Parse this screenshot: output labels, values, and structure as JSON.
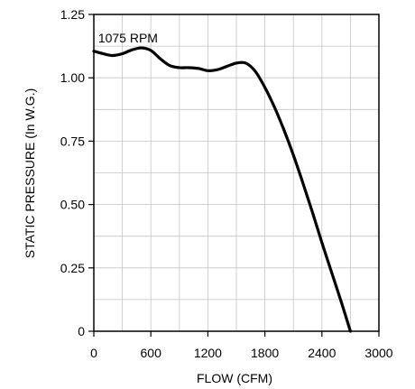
{
  "chart_data": {
    "type": "line",
    "xlabel": "FLOW (CFM)",
    "ylabel": "STATIC PRESSURE (In W.G.)",
    "xlim": [
      0,
      3000
    ],
    "ylim": [
      0,
      1.25
    ],
    "xticks": [
      0,
      600,
      1200,
      1800,
      2400,
      3000
    ],
    "xtick_labels": [
      "0",
      "600",
      "1200",
      "1800",
      "2400",
      "3000"
    ],
    "yticks": [
      0,
      0.25,
      0.5,
      0.75,
      1.0,
      1.25
    ],
    "ytick_labels": [
      "0",
      "0.25",
      "0.50",
      "0.75",
      "1.00",
      "1.25"
    ],
    "x_minor_step": 300,
    "y_minor_step": 0.125,
    "grid": true,
    "annotations": [
      {
        "text": "1075 RPM",
        "x": 360,
        "y": 1.14
      }
    ],
    "series": [
      {
        "color": "#000000",
        "points": [
          [
            0,
            1.105
          ],
          [
            100,
            1.095
          ],
          [
            200,
            1.088
          ],
          [
            300,
            1.095
          ],
          [
            400,
            1.11
          ],
          [
            500,
            1.118
          ],
          [
            600,
            1.108
          ],
          [
            700,
            1.075
          ],
          [
            800,
            1.048
          ],
          [
            900,
            1.04
          ],
          [
            1000,
            1.04
          ],
          [
            1100,
            1.037
          ],
          [
            1200,
            1.028
          ],
          [
            1300,
            1.032
          ],
          [
            1400,
            1.045
          ],
          [
            1500,
            1.058
          ],
          [
            1600,
            1.058
          ],
          [
            1700,
            1.025
          ],
          [
            1800,
            0.962
          ],
          [
            1900,
            0.885
          ],
          [
            2000,
            0.795
          ],
          [
            2100,
            0.695
          ],
          [
            2200,
            0.585
          ],
          [
            2300,
            0.47
          ],
          [
            2400,
            0.35
          ],
          [
            2500,
            0.235
          ],
          [
            2600,
            0.12
          ],
          [
            2700,
            0.0
          ]
        ]
      }
    ]
  }
}
